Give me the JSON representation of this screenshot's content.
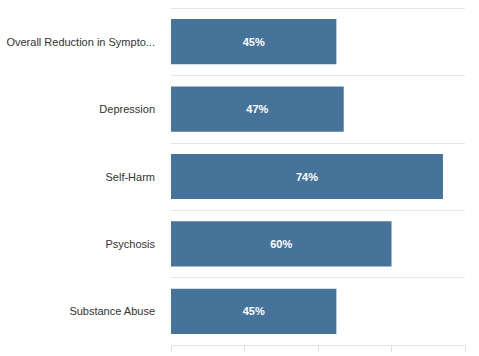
{
  "chart_data": {
    "type": "bar",
    "orientation": "horizontal",
    "categories": [
      "Overall Reduction in Sympto...",
      "Depression",
      "Self-Harm",
      "Psychosis",
      "Substance Abuse"
    ],
    "values": [
      45,
      47,
      74,
      60,
      45
    ],
    "value_labels": [
      "45%",
      "47%",
      "74%",
      "60%",
      "45%"
    ],
    "color": "#46739a",
    "xlim": [
      0,
      80
    ],
    "xticks": [
      0,
      20,
      40,
      60,
      80
    ],
    "grid": true,
    "data_labels": true,
    "tick_labels": "y"
  }
}
